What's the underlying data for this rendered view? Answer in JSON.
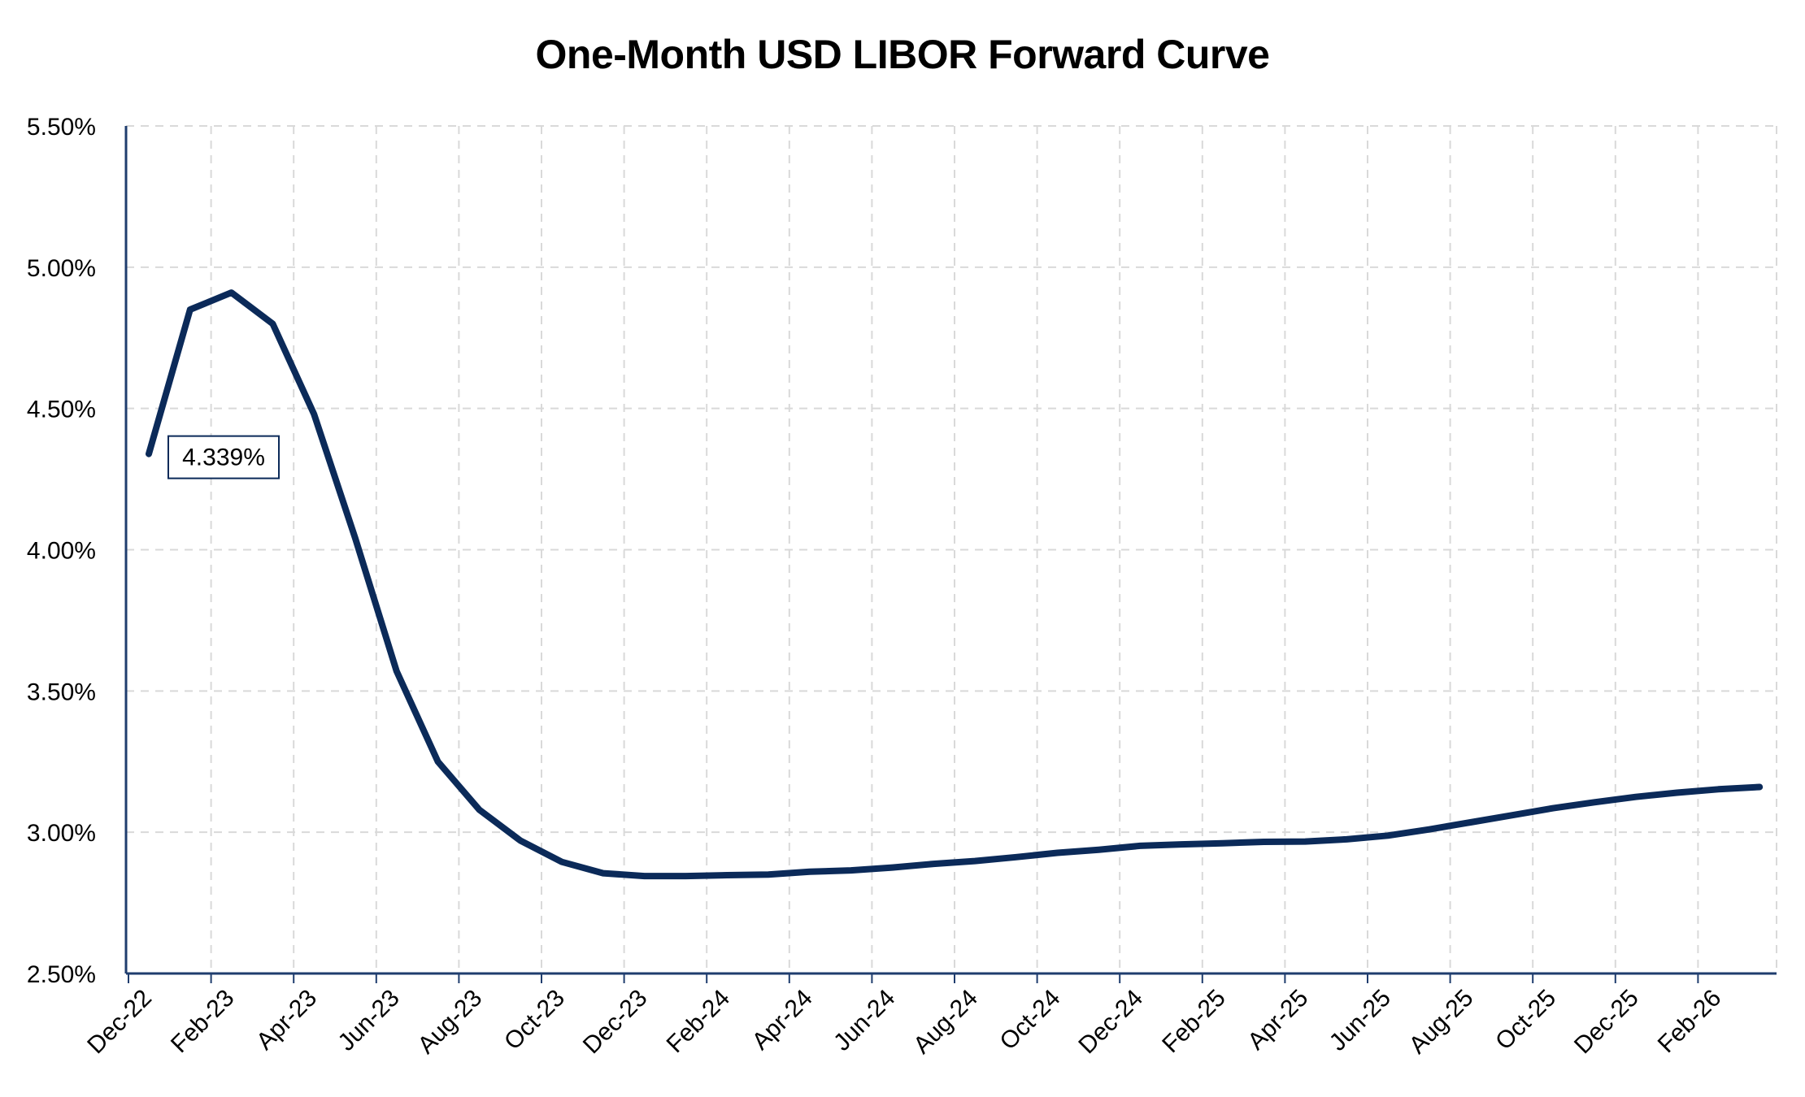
{
  "chart_data": {
    "type": "line",
    "title": "One-Month USD LIBOR Forward Curve",
    "xlabel": "",
    "ylabel": "",
    "ylim": [
      2.5,
      5.5
    ],
    "y_ticks": [
      "2.50%",
      "3.00%",
      "3.50%",
      "4.00%",
      "4.50%",
      "5.00%",
      "5.50%"
    ],
    "y_tick_values": [
      2.5,
      3.0,
      3.5,
      4.0,
      4.5,
      5.0,
      5.5
    ],
    "x_tick_labels": [
      "Dec-22",
      "Feb-23",
      "Apr-23",
      "Jun-23",
      "Aug-23",
      "Oct-23",
      "Dec-23",
      "Feb-24",
      "Apr-24",
      "Jun-24",
      "Aug-24",
      "Oct-24",
      "Dec-24",
      "Feb-25",
      "Apr-25",
      "Jun-25",
      "Aug-25",
      "Oct-25",
      "Dec-25",
      "Feb-26"
    ],
    "grid": true,
    "line_color": "#0b2a59",
    "series": [
      {
        "x": [
          "Dec-22",
          "Jan-23",
          "Feb-23",
          "Mar-23",
          "Apr-23",
          "May-23",
          "Jun-23",
          "Jul-23",
          "Aug-23",
          "Sep-23",
          "Oct-23",
          "Nov-23",
          "Dec-23",
          "Jan-24",
          "Feb-24",
          "Mar-24",
          "Apr-24",
          "May-24",
          "Jun-24",
          "Jul-24",
          "Aug-24",
          "Sep-24",
          "Oct-24",
          "Nov-24",
          "Dec-24",
          "Jan-25",
          "Feb-25",
          "Mar-25",
          "Apr-25",
          "May-25",
          "Jun-25",
          "Jul-25",
          "Aug-25",
          "Sep-25",
          "Oct-25",
          "Nov-25",
          "Dec-25",
          "Jan-26",
          "Feb-26",
          "Mar-26"
        ],
        "values": [
          4.339,
          4.85,
          4.91,
          4.8,
          4.48,
          4.04,
          3.57,
          3.25,
          3.08,
          2.97,
          2.895,
          2.855,
          2.845,
          2.845,
          2.848,
          2.85,
          2.86,
          2.865,
          2.875,
          2.888,
          2.898,
          2.912,
          2.927,
          2.938,
          2.952,
          2.957,
          2.961,
          2.966,
          2.967,
          2.975,
          2.988,
          3.01,
          3.035,
          3.06,
          3.085,
          3.106,
          3.125,
          3.14,
          3.152,
          3.16
        ]
      }
    ],
    "annotation": {
      "text": "4.339%",
      "x": "Dec-22",
      "value": 4.339
    }
  }
}
